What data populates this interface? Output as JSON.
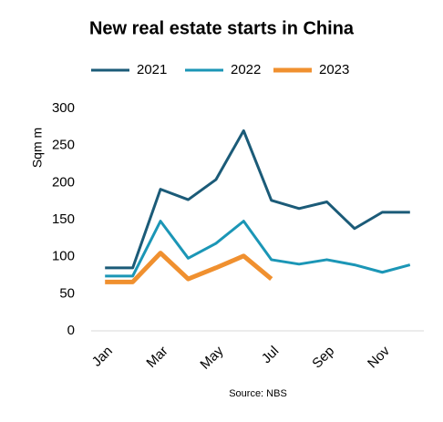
{
  "chart_data": {
    "type": "line",
    "title": "New real estate starts in China",
    "y_label": "Sqm m",
    "source": "Source: NBS",
    "categories": [
      "Jan",
      null,
      "Mar",
      null,
      "May",
      null,
      "Jul",
      null,
      "Sep",
      null,
      "Nov",
      null
    ],
    "series": [
      {
        "name": "2021",
        "color": "#1b5b78",
        "values": [
          85,
          85,
          191,
          177,
          204,
          270,
          176,
          165,
          174,
          138,
          160,
          160
        ]
      },
      {
        "name": "2022",
        "color": "#1b96b6",
        "values": [
          74,
          74,
          148,
          98,
          118,
          148,
          96,
          90,
          96,
          89,
          79,
          89
        ]
      },
      {
        "name": "2023",
        "color": "#f0902f",
        "values": [
          66,
          66,
          105,
          70,
          85,
          101,
          70,
          null,
          null,
          null,
          null,
          null
        ]
      }
    ],
    "ylim": [
      0,
      300
    ],
    "yticks": [
      0,
      50,
      100,
      150,
      200,
      250,
      300
    ]
  }
}
